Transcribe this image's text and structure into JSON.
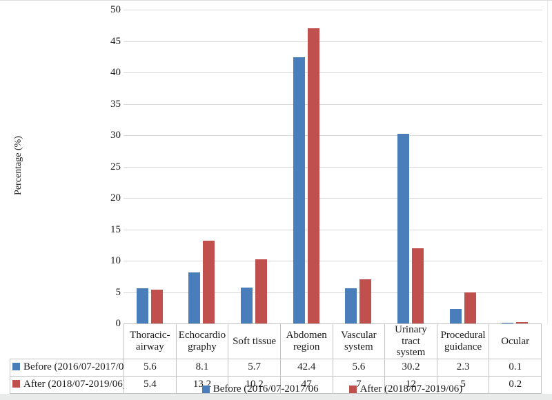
{
  "ui": {
    "bottom_strip_color": "#e9ebeb"
  },
  "chart_data": {
    "type": "bar",
    "title": "",
    "xlabel": "",
    "ylabel": "Percentage (%)",
    "ylim": [
      0,
      50
    ],
    "yticks": [
      0,
      5,
      10,
      15,
      20,
      25,
      30,
      35,
      40,
      45,
      50
    ],
    "grid": true,
    "legend_position": "bottom",
    "gridline_color": "#d9d9d9",
    "data_table_shown": true,
    "data_table_border_color": "#c3c3c3",
    "categories": [
      "Thoracic-\nairway",
      "Echocardio\ngraphy",
      "Soft tissue",
      "Abdomen\nregion",
      "Vascular\nsystem",
      "Urinary\ntract system",
      "Procedural\nguidance",
      "Ocular"
    ],
    "series": [
      {
        "name": "Before (2016/07-2017/06",
        "color": "#4a7ebb",
        "values": [
          5.6,
          8.1,
          5.7,
          42.4,
          5.6,
          30.2,
          2.3,
          0.1
        ],
        "display": [
          "5.6",
          "8.1",
          "5.7",
          "42.4",
          "5.6",
          "30.2",
          "2.3",
          "0.1"
        ]
      },
      {
        "name": "After (2018/07-2019/06)",
        "color": "#c0504d",
        "values": [
          5.4,
          13.2,
          10.2,
          47,
          7,
          12,
          5,
          0.2
        ],
        "display": [
          "5.4",
          "13.2",
          "10.2",
          "47",
          "7",
          "12",
          "5",
          "0.2"
        ]
      }
    ]
  }
}
